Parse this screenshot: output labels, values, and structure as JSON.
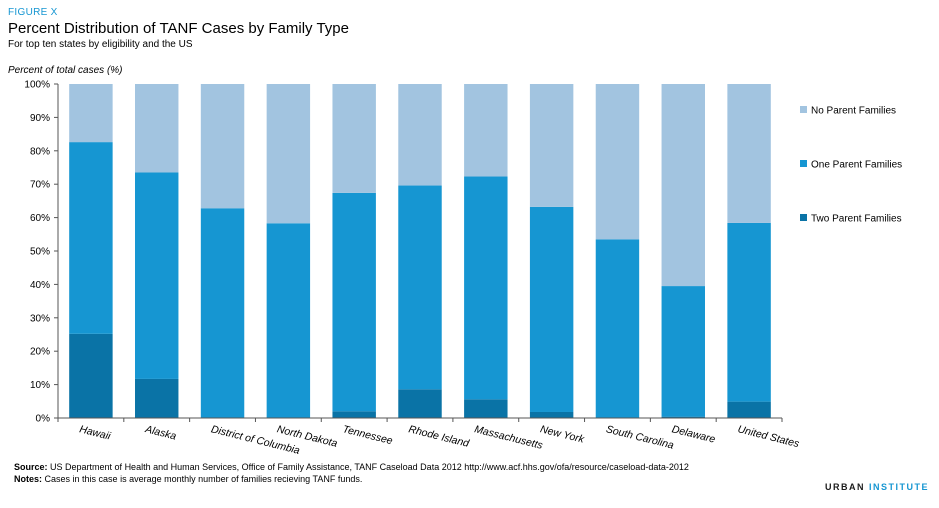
{
  "figure_label": "FIGURE X",
  "title": "Percent Distribution of TANF Cases by Family Type",
  "subtitle": "For top ten states by eligibility and the US",
  "brand": {
    "part1": "URBAN",
    "part2": "INSTITUTE"
  },
  "source": {
    "label": "Source:",
    "text": "US Department of Health and Human Services, Office of Family Assistance, TANF Caseload Data 2012 http://www.acf.hhs.gov/ofa/resource/caseload-data-2012"
  },
  "notes": {
    "label": "Notes:",
    "text": "Cases in this case is average monthly number of families recieving TANF funds."
  },
  "chart_data": {
    "type": "bar",
    "stacked": true,
    "ylabel": "Percent of total cases (%)",
    "ylim": [
      0,
      100
    ],
    "yticks": [
      "0%",
      "10%",
      "20%",
      "30%",
      "40%",
      "50%",
      "60%",
      "70%",
      "80%",
      "90%",
      "100%"
    ],
    "grid": false,
    "legend_position": "right",
    "categories": [
      "Hawaii",
      "Alaska",
      "District of Columbia",
      "North Dakota",
      "Tennessee",
      "Rhode Island",
      "Massachusetts",
      "New York",
      "South Carolina",
      "Delaware",
      "United States"
    ],
    "series": [
      {
        "name": "Two Parent Families",
        "color": "#0a73a6",
        "values": [
          25.2,
          11.7,
          0,
          0,
          2.0,
          8.6,
          5.6,
          1.8,
          0,
          0.4,
          4.9
        ]
      },
      {
        "name": "One Parent Families",
        "color": "#1696d2",
        "values": [
          57.4,
          61.8,
          62.8,
          58.3,
          65.4,
          61.0,
          66.7,
          61.4,
          53.5,
          39.1,
          53.5
        ]
      },
      {
        "name": "No Parent Families",
        "color": "#a2c4e0",
        "values": [
          17.4,
          26.5,
          37.2,
          41.7,
          32.6,
          30.4,
          27.7,
          36.8,
          46.5,
          60.5,
          41.6
        ]
      }
    ],
    "legend_order": [
      "No Parent Families",
      "One Parent Families",
      "Two Parent Families"
    ]
  }
}
